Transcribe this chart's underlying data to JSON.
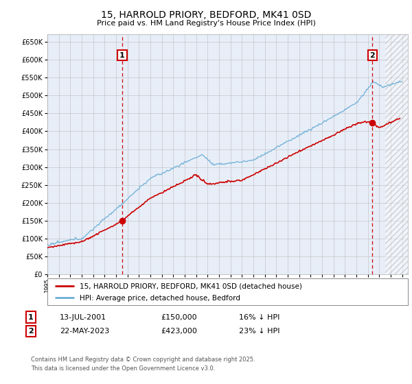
{
  "title": "15, HARROLD PRIORY, BEDFORD, MK41 0SD",
  "subtitle": "Price paid vs. HM Land Registry's House Price Index (HPI)",
  "ylim": [
    0,
    670000
  ],
  "yticks": [
    0,
    50000,
    100000,
    150000,
    200000,
    250000,
    300000,
    350000,
    400000,
    450000,
    500000,
    550000,
    600000,
    650000
  ],
  "hpi_color": "#6baed6",
  "price_color": "#cc0000",
  "sale1_date": 2001.54,
  "sale1_price": 150000,
  "sale2_date": 2023.39,
  "sale2_price": 423000,
  "legend_label1": "15, HARROLD PRIORY, BEDFORD, MK41 0SD (detached house)",
  "legend_label2": "HPI: Average price, detached house, Bedford",
  "footer": "Contains HM Land Registry data © Crown copyright and database right 2025.\nThis data is licensed under the Open Government Licence v3.0.",
  "plot_bg": "#e8eef8",
  "hatch_start": 2024.5,
  "xmin": 1995.0,
  "xmax": 2026.5
}
